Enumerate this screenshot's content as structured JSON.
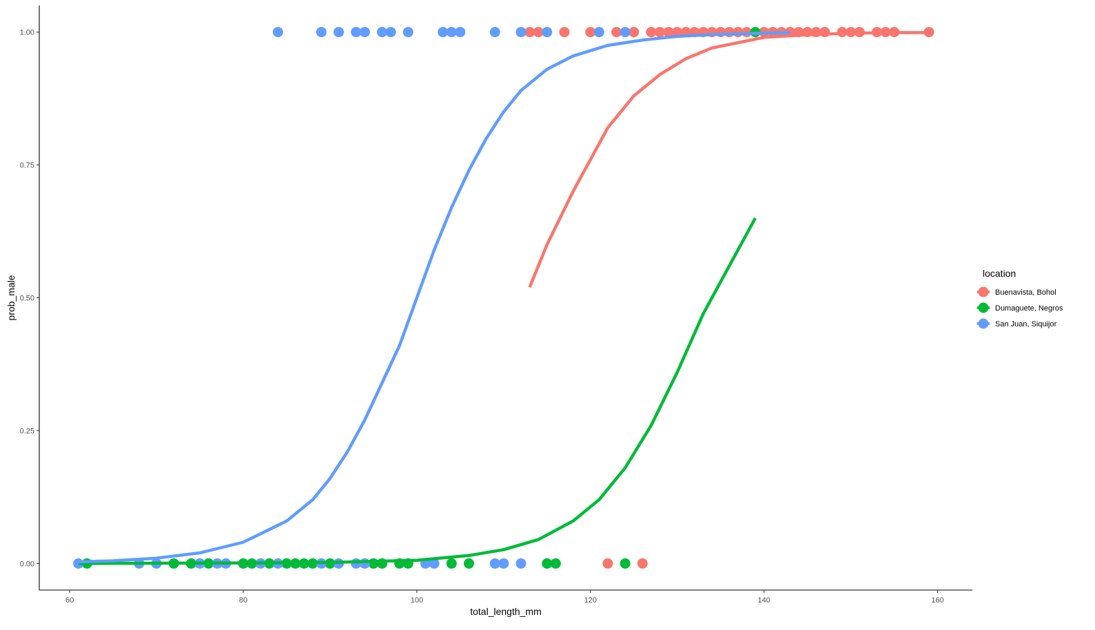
{
  "chart_data": {
    "type": "scatter",
    "xlabel": "total_length_mm",
    "ylabel": "prob_male",
    "xlim": [
      56.5,
      164
    ],
    "ylim": [
      -0.05,
      1.05
    ],
    "x_ticks": [
      60,
      80,
      100,
      120,
      140,
      160
    ],
    "x_tick_labels": [
      "60",
      "80",
      "100",
      "120",
      "140",
      "160"
    ],
    "y_ticks": [
      0,
      0.25,
      0.5,
      0.75,
      1
    ],
    "y_tick_labels": [
      "0.00",
      "0.25",
      "0.50",
      "0.75",
      "1.00"
    ],
    "grid": false,
    "legend": {
      "title": "location",
      "placement": "right"
    },
    "series": [
      {
        "name": "Buenavista, Bohol",
        "color": "#F8766D",
        "points": [
          [
            113,
            1
          ],
          [
            114,
            1
          ],
          [
            117,
            1
          ],
          [
            120,
            1
          ],
          [
            123,
            1
          ],
          [
            125,
            1
          ],
          [
            127,
            1
          ],
          [
            128,
            1
          ],
          [
            129,
            1
          ],
          [
            130,
            1
          ],
          [
            131,
            1
          ],
          [
            132,
            1
          ],
          [
            133,
            1
          ],
          [
            134,
            1
          ],
          [
            135,
            1
          ],
          [
            136,
            1
          ],
          [
            137,
            1
          ],
          [
            138,
            1
          ],
          [
            140,
            1
          ],
          [
            141,
            1
          ],
          [
            142,
            1
          ],
          [
            143,
            1
          ],
          [
            144,
            1
          ],
          [
            145,
            1
          ],
          [
            146,
            1
          ],
          [
            147,
            1
          ],
          [
            149,
            1
          ],
          [
            150,
            1
          ],
          [
            151,
            1
          ],
          [
            153,
            1
          ],
          [
            154,
            1
          ],
          [
            155,
            1
          ],
          [
            159,
            1
          ],
          [
            122,
            0
          ],
          [
            126,
            0
          ]
        ],
        "curve": [
          [
            113,
            0.52
          ],
          [
            115,
            0.6
          ],
          [
            118,
            0.7
          ],
          [
            120,
            0.76
          ],
          [
            122,
            0.82
          ],
          [
            125,
            0.88
          ],
          [
            128,
            0.92
          ],
          [
            131,
            0.95
          ],
          [
            134,
            0.97
          ],
          [
            137,
            0.98
          ],
          [
            140,
            0.99
          ],
          [
            145,
            0.995
          ],
          [
            150,
            0.998
          ],
          [
            155,
            0.999
          ],
          [
            159,
            0.999
          ]
        ]
      },
      {
        "name": "Dumaguete, Negros",
        "color": "#00BA38",
        "points": [
          [
            139,
            1
          ],
          [
            62,
            0
          ],
          [
            72,
            0
          ],
          [
            74,
            0
          ],
          [
            76,
            0
          ],
          [
            80,
            0
          ],
          [
            81,
            0
          ],
          [
            83,
            0
          ],
          [
            85,
            0
          ],
          [
            86,
            0
          ],
          [
            87,
            0
          ],
          [
            88,
            0
          ],
          [
            90,
            0
          ],
          [
            95,
            0
          ],
          [
            96,
            0
          ],
          [
            98,
            0
          ],
          [
            99,
            0
          ],
          [
            104,
            0
          ],
          [
            106,
            0
          ],
          [
            115,
            0
          ],
          [
            116,
            0
          ],
          [
            124,
            0
          ]
        ],
        "curve": [
          [
            61,
            0
          ],
          [
            80,
            0.001
          ],
          [
            90,
            0.002
          ],
          [
            100,
            0.006
          ],
          [
            106,
            0.015
          ],
          [
            110,
            0.026
          ],
          [
            114,
            0.045
          ],
          [
            118,
            0.08
          ],
          [
            121,
            0.12
          ],
          [
            124,
            0.18
          ],
          [
            127,
            0.26
          ],
          [
            130,
            0.36
          ],
          [
            133,
            0.47
          ],
          [
            136,
            0.56
          ],
          [
            139,
            0.65
          ]
        ]
      },
      {
        "name": "San Juan, Siquijor",
        "color": "#619CFF",
        "points": [
          [
            84,
            1
          ],
          [
            89,
            1
          ],
          [
            91,
            1
          ],
          [
            93,
            1
          ],
          [
            94,
            1
          ],
          [
            96,
            1
          ],
          [
            97,
            1
          ],
          [
            99,
            1
          ],
          [
            103,
            1
          ],
          [
            104,
            1
          ],
          [
            105,
            1
          ],
          [
            109,
            1
          ],
          [
            112,
            1
          ],
          [
            115,
            1
          ],
          [
            121,
            1
          ],
          [
            124,
            1
          ],
          [
            61,
            0
          ],
          [
            68,
            0
          ],
          [
            70,
            0
          ],
          [
            75,
            0
          ],
          [
            77,
            0
          ],
          [
            78,
            0
          ],
          [
            82,
            0
          ],
          [
            84,
            0
          ],
          [
            89,
            0
          ],
          [
            91,
            0
          ],
          [
            93,
            0
          ],
          [
            94,
            0
          ],
          [
            101,
            0
          ],
          [
            102,
            0
          ],
          [
            109,
            0
          ],
          [
            110,
            0
          ],
          [
            112,
            0
          ]
        ],
        "curve": [
          [
            61,
            0.003
          ],
          [
            65,
            0.005
          ],
          [
            70,
            0.01
          ],
          [
            75,
            0.02
          ],
          [
            80,
            0.04
          ],
          [
            85,
            0.08
          ],
          [
            88,
            0.12
          ],
          [
            90,
            0.16
          ],
          [
            92,
            0.21
          ],
          [
            94,
            0.27
          ],
          [
            96,
            0.34
          ],
          [
            98,
            0.41
          ],
          [
            100,
            0.5
          ],
          [
            102,
            0.59
          ],
          [
            104,
            0.67
          ],
          [
            106,
            0.74
          ],
          [
            108,
            0.8
          ],
          [
            110,
            0.85
          ],
          [
            112,
            0.89
          ],
          [
            115,
            0.93
          ],
          [
            118,
            0.955
          ],
          [
            122,
            0.975
          ],
          [
            126,
            0.985
          ],
          [
            130,
            0.992
          ],
          [
            135,
            0.996
          ],
          [
            140,
            0.998
          ],
          [
            143,
            0.999
          ]
        ]
      }
    ]
  }
}
